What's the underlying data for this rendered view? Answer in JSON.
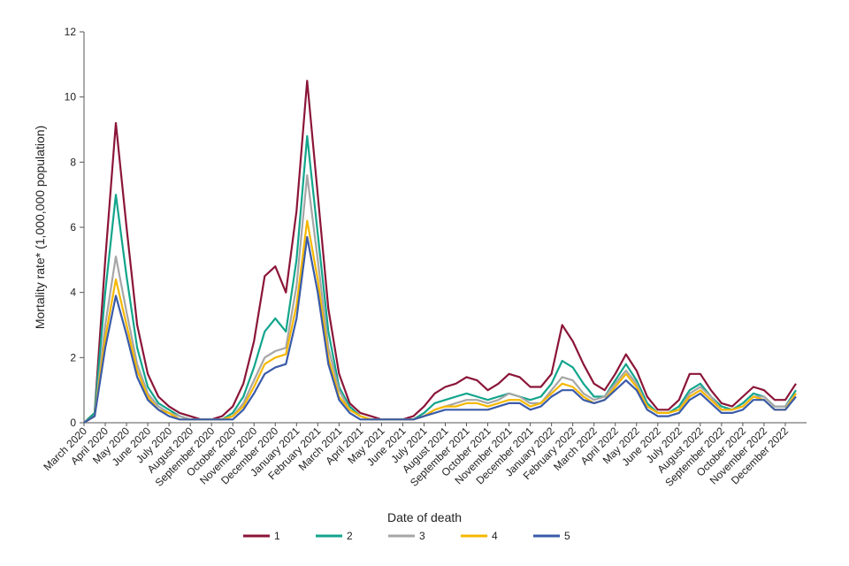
{
  "chart_data": {
    "type": "line",
    "x_label": "Date of death",
    "y_label": "Mortality rate* (1,000,000 population)",
    "categories": [
      "March 2020",
      null,
      "April 2020",
      null,
      "May 2020",
      null,
      "June 2020",
      null,
      "July 2020",
      null,
      "August 2020",
      null,
      "September 2020",
      null,
      "October 2020",
      null,
      "November 2020",
      null,
      "December 2020",
      null,
      "January 2021",
      null,
      "February 2021",
      null,
      "March 2021",
      null,
      "April 2021",
      null,
      "May 2021",
      null,
      "June 2021",
      null,
      "July 2021",
      null,
      "August 2021",
      null,
      "September 2021",
      null,
      "October 2021",
      null,
      "November 2021",
      null,
      "December 2021",
      null,
      "January 2022",
      null,
      "February 2022",
      null,
      "March 2022",
      null,
      "April 2022",
      null,
      "May 2022",
      null,
      "June 2022",
      null,
      "July 2022",
      null,
      "August 2022",
      null,
      "September 2022",
      null,
      "October 2022",
      null,
      "November 2022",
      null,
      "December 2022",
      null
    ],
    "series": [
      {
        "name": "1",
        "color": "#8b1538",
        "values": [
          0,
          0.3,
          5,
          9.2,
          6,
          3,
          1.5,
          0.8,
          0.5,
          0.3,
          0.2,
          0.1,
          0.1,
          0.2,
          0.5,
          1.2,
          2.5,
          4.5,
          4.8,
          4.0,
          6.5,
          10.5,
          7,
          3.5,
          1.5,
          0.6,
          0.3,
          0.2,
          0.1,
          0.1,
          0.1,
          0.2,
          0.5,
          0.9,
          1.1,
          1.2,
          1.4,
          1.3,
          1.0,
          1.2,
          1.5,
          1.4,
          1.1,
          1.1,
          1.5,
          3.0,
          2.5,
          1.8,
          1.2,
          1.0,
          1.5,
          2.1,
          1.6,
          0.8,
          0.4,
          0.4,
          0.7,
          1.5,
          1.5,
          1.0,
          0.6,
          0.5,
          0.8,
          1.1,
          1.0,
          0.7,
          0.7,
          1.2
        ]
      },
      {
        "name": "2",
        "color": "#12a58c",
        "values": [
          0,
          0.3,
          4,
          7,
          4.5,
          2.3,
          1.1,
          0.6,
          0.4,
          0.2,
          0.1,
          0.1,
          0.1,
          0.1,
          0.3,
          0.8,
          1.7,
          2.8,
          3.2,
          2.8,
          5,
          8.8,
          5.8,
          2.8,
          1.1,
          0.5,
          0.2,
          0.1,
          0.1,
          0.1,
          0.1,
          0.1,
          0.3,
          0.6,
          0.7,
          0.8,
          0.9,
          0.8,
          0.7,
          0.8,
          0.9,
          0.8,
          0.7,
          0.8,
          1.2,
          1.9,
          1.7,
          1.2,
          0.8,
          0.8,
          1.3,
          1.8,
          1.3,
          0.6,
          0.3,
          0.3,
          0.5,
          1.0,
          1.2,
          0.8,
          0.5,
          0.4,
          0.6,
          0.9,
          0.8,
          0.5,
          0.5,
          1.0
        ]
      },
      {
        "name": "3",
        "color": "#a6a6a6",
        "values": [
          0,
          0.2,
          3,
          5.1,
          3.4,
          1.8,
          0.9,
          0.5,
          0.3,
          0.2,
          0.1,
          0.1,
          0.1,
          0.1,
          0.2,
          0.6,
          1.3,
          2.0,
          2.2,
          2.3,
          4.2,
          7.6,
          5,
          2.3,
          1,
          0.4,
          0.2,
          0.1,
          0.1,
          0.1,
          0.1,
          0.1,
          0.2,
          0.4,
          0.5,
          0.6,
          0.7,
          0.7,
          0.6,
          0.7,
          0.9,
          0.8,
          0.6,
          0.6,
          1.0,
          1.4,
          1.3,
          0.9,
          0.7,
          0.8,
          1.2,
          1.6,
          1.2,
          0.5,
          0.3,
          0.3,
          0.4,
          0.9,
          1.1,
          0.8,
          0.4,
          0.4,
          0.5,
          0.8,
          0.8,
          0.5,
          0.5,
          0.9
        ]
      },
      {
        "name": "4",
        "color": "#f5b800",
        "values": [
          0,
          0.2,
          2.6,
          4.4,
          3,
          1.6,
          0.8,
          0.4,
          0.3,
          0.1,
          0.1,
          0.1,
          0.1,
          0.1,
          0.2,
          0.5,
          1.1,
          1.8,
          2.0,
          2.1,
          3.6,
          6.2,
          4.4,
          2,
          0.8,
          0.4,
          0.2,
          0.1,
          0.1,
          0.1,
          0.1,
          0.1,
          0.2,
          0.4,
          0.5,
          0.5,
          0.6,
          0.6,
          0.5,
          0.6,
          0.7,
          0.7,
          0.5,
          0.6,
          0.9,
          1.2,
          1.1,
          0.8,
          0.6,
          0.7,
          1.1,
          1.5,
          1.1,
          0.5,
          0.3,
          0.3,
          0.4,
          0.8,
          1.0,
          0.7,
          0.4,
          0.4,
          0.5,
          0.8,
          0.7,
          0.4,
          0.4,
          0.9
        ]
      },
      {
        "name": "5",
        "color": "#3a5ba9",
        "values": [
          0,
          0.2,
          2.3,
          3.9,
          2.7,
          1.4,
          0.7,
          0.4,
          0.2,
          0.1,
          0.1,
          0.1,
          0.1,
          0.1,
          0.1,
          0.4,
          0.9,
          1.5,
          1.7,
          1.8,
          3.2,
          5.7,
          4,
          1.8,
          0.7,
          0.3,
          0.1,
          0.1,
          0.1,
          0.1,
          0.1,
          0.1,
          0.2,
          0.3,
          0.4,
          0.4,
          0.4,
          0.4,
          0.4,
          0.5,
          0.6,
          0.6,
          0.4,
          0.5,
          0.8,
          1.0,
          1.0,
          0.7,
          0.6,
          0.7,
          1.0,
          1.3,
          1.0,
          0.4,
          0.2,
          0.2,
          0.3,
          0.7,
          0.9,
          0.6,
          0.3,
          0.3,
          0.4,
          0.7,
          0.7,
          0.4,
          0.4,
          0.8
        ]
      }
    ],
    "ylim": [
      0,
      12
    ],
    "yticks": [
      0,
      2,
      4,
      6,
      8,
      10,
      12
    ],
    "legend": "bottom"
  }
}
